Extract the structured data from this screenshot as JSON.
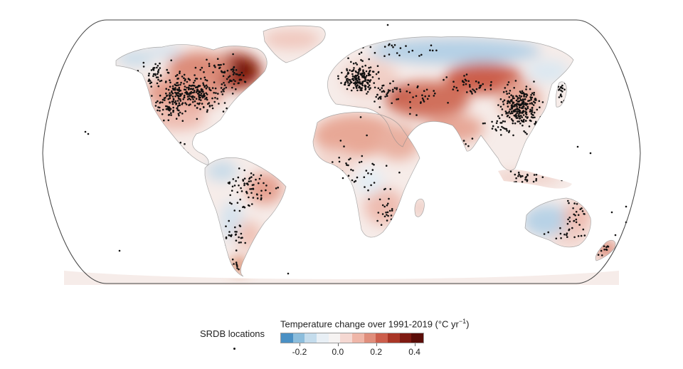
{
  "legend": {
    "points_label": "SRDB locations",
    "colorbar_title_prefix": "Temperature change over 1991-2019 (°C yr",
    "colorbar_title_exp": "−1",
    "colorbar_title_suffix": ")",
    "ticks": [
      {
        "value": -0.2,
        "label": "-0.2"
      },
      {
        "value": 0.0,
        "label": "0.0"
      },
      {
        "value": 0.2,
        "label": "0.2"
      },
      {
        "value": 0.4,
        "label": "0.4"
      }
    ],
    "range": [
      -0.3,
      0.45
    ],
    "colors": [
      "#4a90c4",
      "#8cbddc",
      "#c4dcec",
      "#e8eff5",
      "#f6f3f2",
      "#f5d8d2",
      "#efb6a8",
      "#e08e7c",
      "#cc5e4c",
      "#a93626",
      "#7e1a12",
      "#5a0d08"
    ]
  },
  "map": {
    "projection": "Robinson",
    "ocean_color": "#ffffff",
    "land_base_color": "#f6ece9",
    "point_color": "#111111"
  }
}
